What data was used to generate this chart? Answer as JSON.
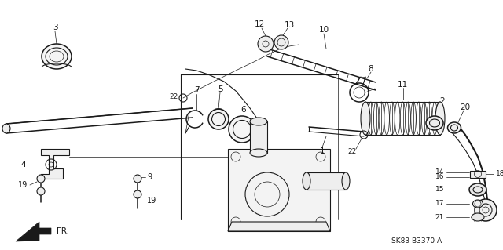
{
  "background_color": "#ffffff",
  "line_color": "#1a1a1a",
  "part_number_text": "SK83-B3370 A",
  "fig_width": 6.4,
  "fig_height": 3.19,
  "dpi": 100
}
